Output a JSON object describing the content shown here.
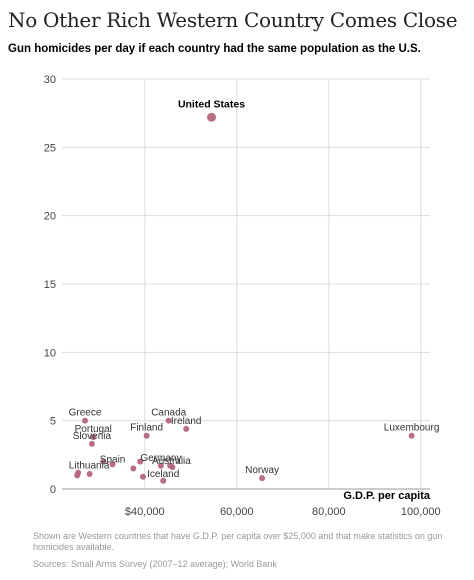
{
  "chart_data": {
    "type": "scatter",
    "title": "No Other Rich Western Country Comes Close",
    "subtitle": "Gun homicides per day if each country had the same population as the U.S.",
    "xlabel": "G.D.P. per capita",
    "ylabel": "",
    "xlim": [
      22000,
      102000
    ],
    "ylim": [
      0,
      30
    ],
    "x_ticks": [
      {
        "value": 40000,
        "label": "$40,000"
      },
      {
        "value": 60000,
        "label": "60,000"
      },
      {
        "value": 80000,
        "label": "80,000"
      },
      {
        "value": 100000,
        "label": "100,000"
      }
    ],
    "y_ticks": [
      {
        "value": 0,
        "label": "0"
      },
      {
        "value": 5,
        "label": "5"
      },
      {
        "value": 10,
        "label": "10"
      },
      {
        "value": 15,
        "label": "15"
      },
      {
        "value": 20,
        "label": "20"
      },
      {
        "value": 25,
        "label": "25"
      },
      {
        "value": 30,
        "label": "30"
      }
    ],
    "grid": true,
    "marker_color": "#b5667c",
    "highlight_color": "#b5667c",
    "points": [
      {
        "label": "United States",
        "x": 54500,
        "y": 27.2,
        "highlight": true
      },
      {
        "label": "Luxembourg",
        "x": 98000,
        "y": 3.9
      },
      {
        "label": "Norway",
        "x": 65500,
        "y": 0.8
      },
      {
        "label": "Canada",
        "x": 45200,
        "y": 5.0
      },
      {
        "label": "Ireland",
        "x": 49000,
        "y": 4.4
      },
      {
        "label": "Finland",
        "x": 40400,
        "y": 3.9
      },
      {
        "label": "Greece",
        "x": 27000,
        "y": 5.0
      },
      {
        "label": "Portugal",
        "x": 28800,
        "y": 3.8
      },
      {
        "label": "Slovenia",
        "x": 28500,
        "y": 3.3
      },
      {
        "label": "Spain",
        "x": 33000,
        "y": 1.8
      },
      {
        "label": "Lithuania",
        "x": 25500,
        "y": 1.2
      },
      {
        "label": "Germany",
        "x": 43500,
        "y": 1.7
      },
      {
        "label": "Australia",
        "x": 46000,
        "y": 1.6
      },
      {
        "label": "Iceland",
        "x": 44000,
        "y": 0.6
      },
      {
        "label": "",
        "x": 25300,
        "y": 1.0
      },
      {
        "label": "",
        "x": 28000,
        "y": 1.1
      },
      {
        "label": "",
        "x": 31000,
        "y": 2.0
      },
      {
        "label": "",
        "x": 37500,
        "y": 1.5
      },
      {
        "label": "",
        "x": 39000,
        "y": 2.0
      },
      {
        "label": "",
        "x": 39600,
        "y": 0.9
      },
      {
        "label": "",
        "x": 45500,
        "y": 1.7
      }
    ]
  },
  "note": "Shown are Western countries that have G.D.P. per capita over $25,000 and that make statistics on gun homicides available.",
  "source": "Sources: Small Arms Survey (2007–12 average); World Bank"
}
